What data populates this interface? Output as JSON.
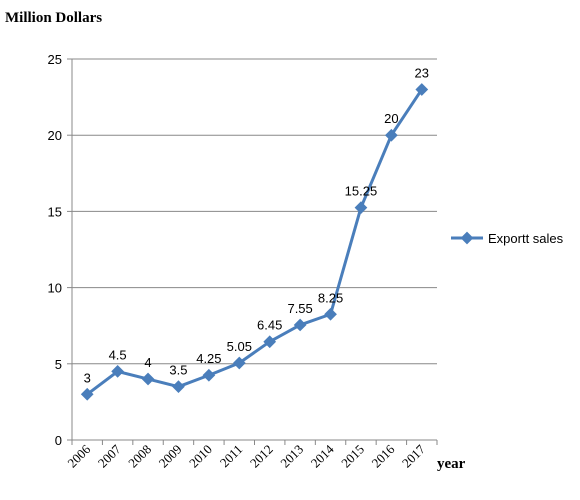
{
  "chart_data": {
    "type": "line",
    "ylabel": "Million Dollars",
    "xlabel": "year",
    "categories": [
      "2006",
      "2007",
      "2008",
      "2009",
      "2010",
      "2011",
      "2012",
      "2013",
      "2014",
      "2015",
      "2016",
      "2017"
    ],
    "series": [
      {
        "name": "Exportt sales",
        "values": [
          3,
          4.5,
          4,
          3.5,
          4.25,
          5.05,
          6.45,
          7.55,
          8.25,
          15.25,
          20,
          23
        ],
        "labels": [
          "3",
          "4.5",
          "4",
          "3.5",
          "4.25",
          "5.05",
          "6.45",
          "7.55",
          "8.25",
          "15.25",
          "20",
          "23"
        ],
        "color": "#4a7ebb"
      }
    ],
    "ylim": [
      0,
      25
    ],
    "yticks": [
      "0",
      "5",
      "10",
      "15",
      "20",
      "25"
    ],
    "grid": true,
    "legend": "right",
    "gridColor": "#888888",
    "axisColor": "#888888"
  }
}
